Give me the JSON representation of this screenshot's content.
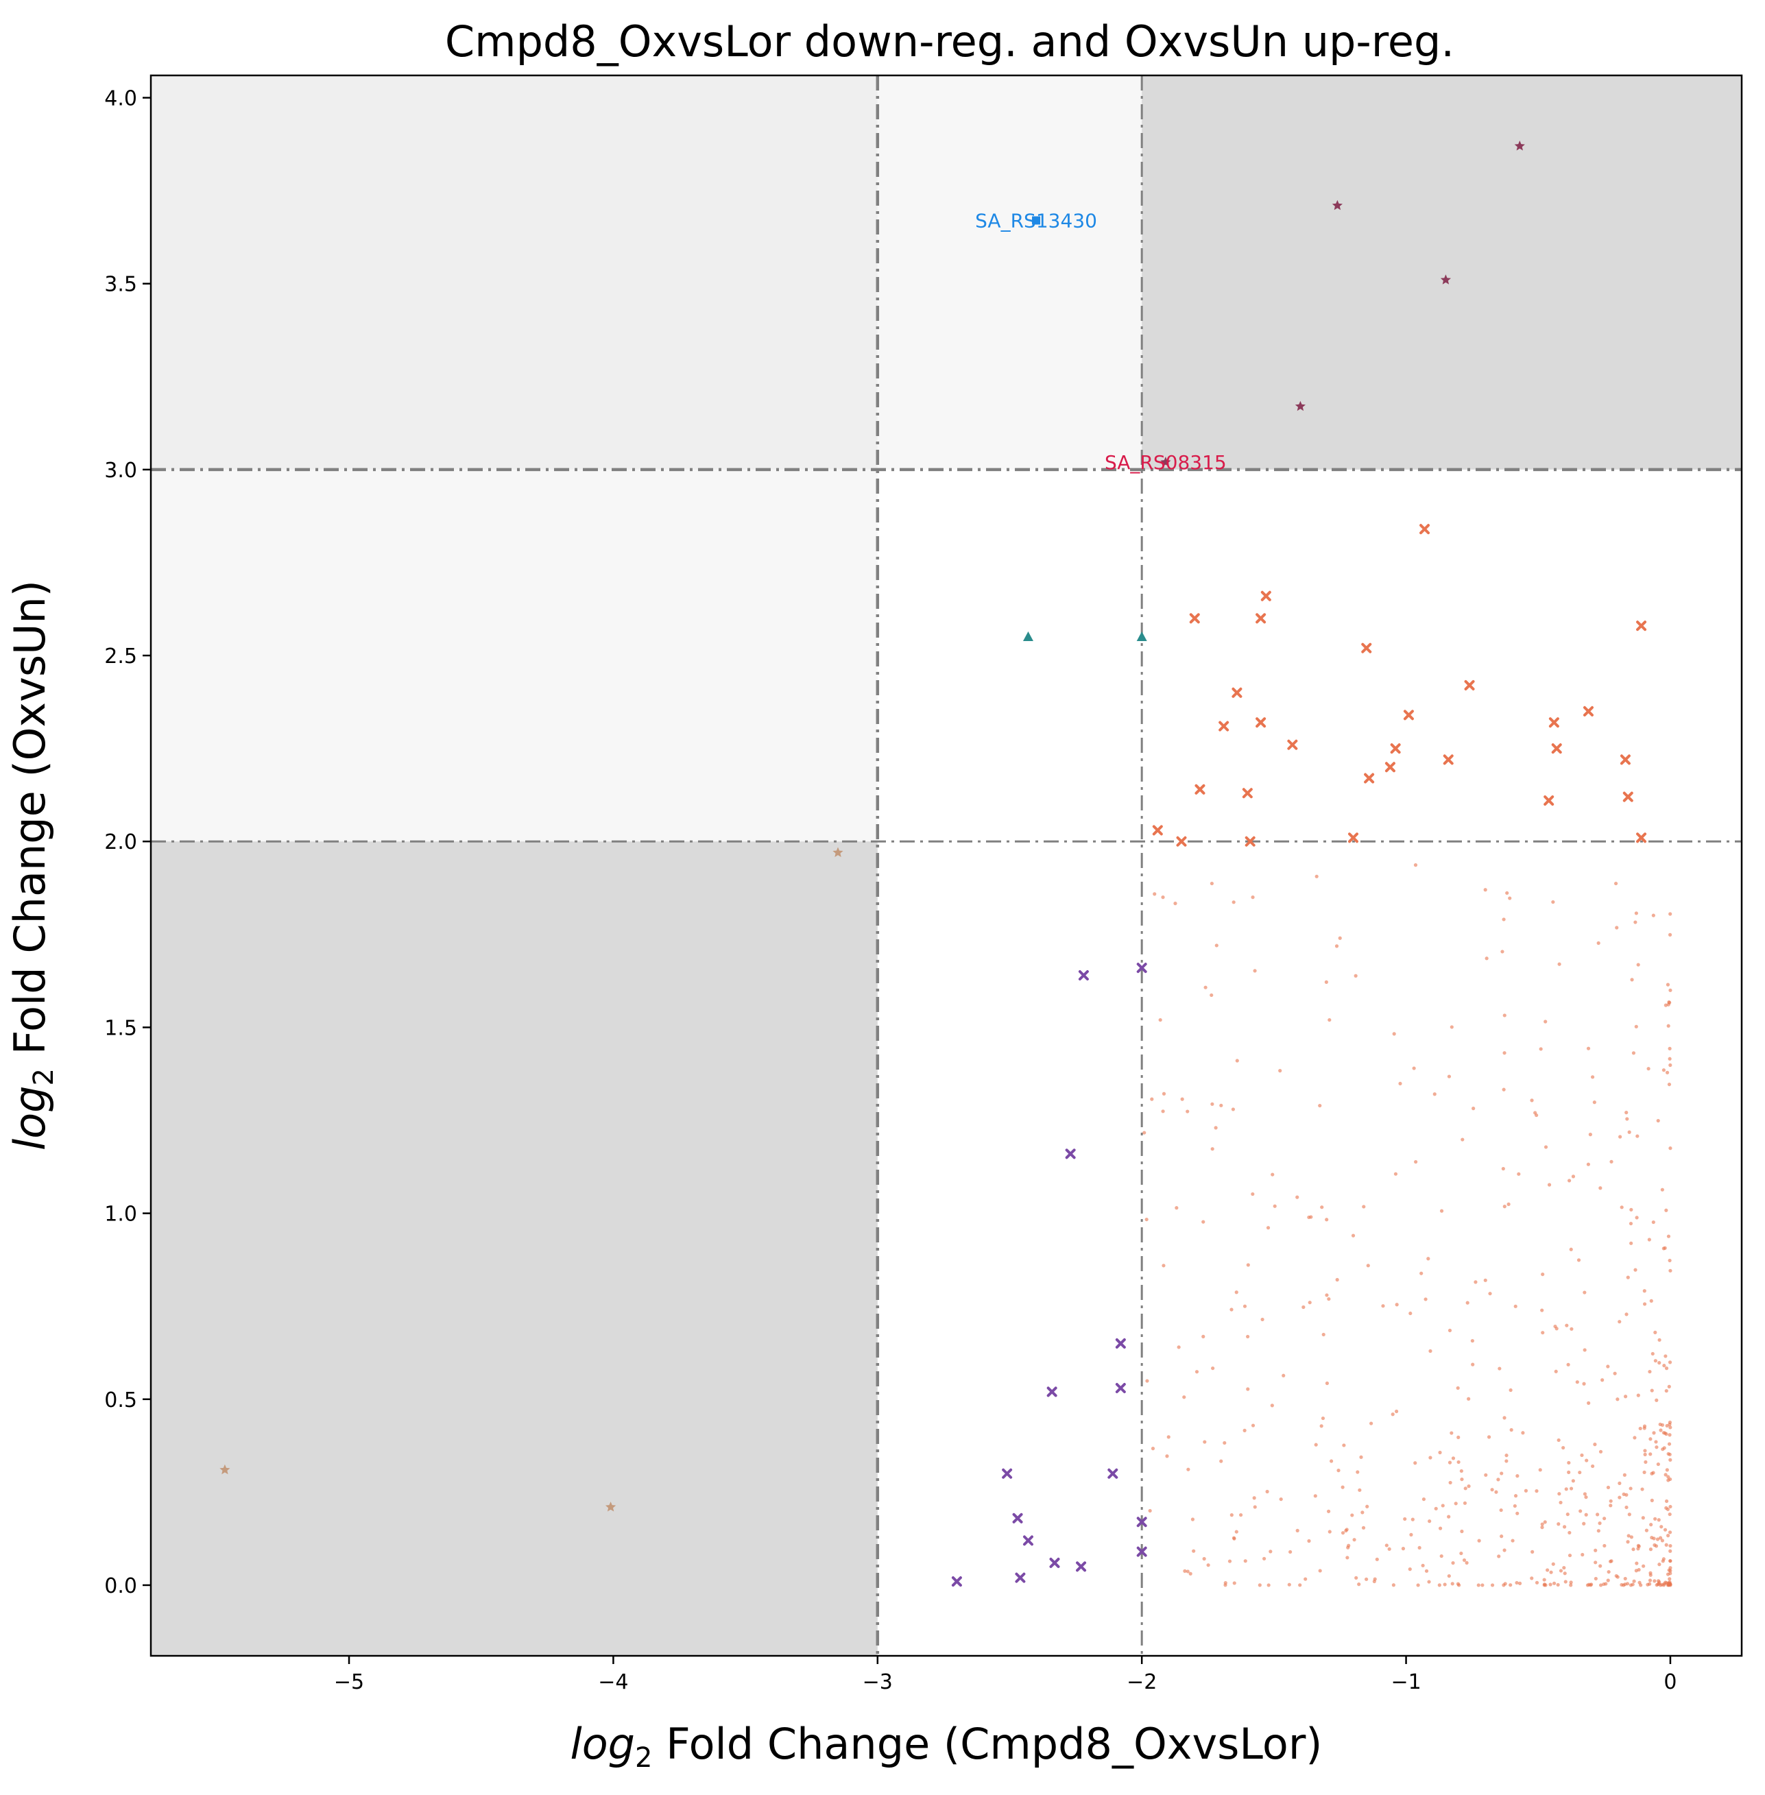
{
  "chart_data": {
    "type": "scatter",
    "title": "Cmpd8_OxvsLor down-reg. and OxvsUn up-reg.",
    "xlabel_math": "log",
    "xlabel_sub": "2",
    "xlabel_rest": " Fold Change (Cmpd8_OxvsLor)",
    "ylabel_math": "log",
    "ylabel_sub": "2",
    "ylabel_rest": " Fold Change (OxvsUn)",
    "xlim": [
      -5.75,
      0.27
    ],
    "ylim": [
      -0.19,
      4.06
    ],
    "x_ticks": [
      -5,
      -4,
      -3,
      -2,
      -1,
      0
    ],
    "x_tick_labels": [
      "−5",
      "−4",
      "−3",
      "−2",
      "−1",
      "0"
    ],
    "y_ticks": [
      0.0,
      0.5,
      1.0,
      1.5,
      2.0,
      2.5,
      3.0,
      3.5,
      4.0
    ],
    "y_tick_labels": [
      "0.0",
      "0.5",
      "1.0",
      "1.5",
      "2.0",
      "2.5",
      "3.0",
      "3.5",
      "4.0"
    ],
    "grid": false,
    "colors": {
      "region_dark": "#dadada",
      "region_light": "#efefef",
      "region_lighter": "#f7f7f7",
      "threshold_line": "#808080"
    },
    "regions": [
      {
        "x": [
          -5.75,
          -3
        ],
        "y": [
          3,
          4.06
        ],
        "shade": "region_light"
      },
      {
        "x": [
          -3,
          -2
        ],
        "y": [
          3,
          4.06
        ],
        "shade": "region_lighter"
      },
      {
        "x": [
          -2,
          0.27
        ],
        "y": [
          3,
          4.06
        ],
        "shade": "region_dark"
      },
      {
        "x": [
          -5.75,
          -3
        ],
        "y": [
          2,
          3
        ],
        "shade": "region_lighter"
      },
      {
        "x": [
          -5.75,
          -3
        ],
        "y": [
          -0.19,
          2
        ],
        "shade": "region_dark"
      }
    ],
    "threshold_lines": [
      {
        "axis": "x",
        "value": -3,
        "weight": "thick"
      },
      {
        "axis": "x",
        "value": -2,
        "weight": "thin"
      },
      {
        "axis": "y",
        "value": 3,
        "weight": "thick"
      },
      {
        "axis": "y",
        "value": 2,
        "weight": "thin"
      }
    ],
    "series": [
      {
        "marker": "star",
        "color": "#8c3a5a",
        "points": [
          [
            -0.57,
            3.87
          ],
          [
            -1.26,
            3.71
          ],
          [
            -0.85,
            3.51
          ],
          [
            -1.4,
            3.17
          ],
          [
            -1.91,
            3.02
          ]
        ]
      },
      {
        "marker": "square",
        "color": "#1e88e5",
        "points": [
          [
            -2.4,
            3.67
          ]
        ]
      },
      {
        "marker": "triangle",
        "color": "#2a8c8c",
        "points": [
          [
            -2.43,
            2.55
          ],
          [
            -2.0,
            2.55
          ]
        ]
      },
      {
        "marker": "star",
        "color": "#c49a7c",
        "points": [
          [
            -3.15,
            1.97
          ],
          [
            -5.47,
            0.31
          ],
          [
            -4.01,
            0.21
          ]
        ]
      },
      {
        "marker": "x",
        "color": "#7b4aa6",
        "points": [
          [
            -2.22,
            1.64
          ],
          [
            -2.0,
            1.66
          ],
          [
            -2.27,
            1.16
          ],
          [
            -2.08,
            0.65
          ],
          [
            -2.34,
            0.52
          ],
          [
            -2.08,
            0.53
          ],
          [
            -2.51,
            0.3
          ],
          [
            -2.11,
            0.3
          ],
          [
            -2.47,
            0.18
          ],
          [
            -2.0,
            0.17
          ],
          [
            -2.43,
            0.12
          ],
          [
            -2.33,
            0.06
          ],
          [
            -2.23,
            0.05
          ],
          [
            -2.0,
            0.09
          ],
          [
            -2.7,
            0.01
          ],
          [
            -2.46,
            0.02
          ]
        ]
      },
      {
        "marker": "x",
        "color": "#e8744f",
        "points": [
          [
            -0.93,
            2.84
          ],
          [
            -1.53,
            2.66
          ],
          [
            -1.8,
            2.6
          ],
          [
            -1.55,
            2.6
          ],
          [
            -0.11,
            2.58
          ],
          [
            -1.15,
            2.52
          ],
          [
            -0.76,
            2.42
          ],
          [
            -1.64,
            2.4
          ],
          [
            -0.31,
            2.35
          ],
          [
            -0.99,
            2.34
          ],
          [
            -1.55,
            2.32
          ],
          [
            -0.44,
            2.32
          ],
          [
            -1.69,
            2.31
          ],
          [
            -1.43,
            2.26
          ],
          [
            -1.04,
            2.25
          ],
          [
            -0.43,
            2.25
          ],
          [
            -0.84,
            2.22
          ],
          [
            -0.17,
            2.22
          ],
          [
            -1.06,
            2.2
          ],
          [
            -1.14,
            2.17
          ],
          [
            -1.78,
            2.14
          ],
          [
            -1.6,
            2.13
          ],
          [
            -0.16,
            2.12
          ],
          [
            -0.46,
            2.11
          ],
          [
            -1.94,
            2.03
          ],
          [
            -1.2,
            2.01
          ],
          [
            -1.59,
            2.0
          ],
          [
            -1.85,
            2.0
          ],
          [
            -0.11,
            2.01
          ]
        ]
      },
      {
        "marker": "dot",
        "color": "#e8744f",
        "cloud_n": 560,
        "sample_points": [
          [
            -1.92,
            1.85
          ],
          [
            -1.58,
            1.85
          ],
          [
            -1.25,
            1.74
          ],
          [
            -0.7,
            1.87
          ],
          [
            -0.42,
            1.67
          ],
          [
            -1.93,
            1.52
          ],
          [
            -1.29,
            1.52
          ],
          [
            -0.97,
            1.39
          ],
          [
            -1.7,
            1.29
          ],
          [
            -1.72,
            1.23
          ],
          [
            -1.36,
            0.99
          ],
          [
            -1.3,
            0.78
          ],
          [
            -1.86,
            0.64
          ],
          [
            -1.61,
            0.75
          ],
          [
            -0.2,
            0.5
          ],
          [
            -0.07,
            0.3
          ],
          [
            -0.03,
            0.12
          ],
          [
            -0.38,
            0.08
          ],
          [
            -1.12,
            0.01
          ],
          [
            -0.8,
            0.0
          ]
        ]
      }
    ],
    "annotations": [
      {
        "text": "SA_RS13430",
        "x": -2.4,
        "y": 3.67,
        "color": "#1e88e5"
      },
      {
        "text": "SA_RS08315",
        "x": -1.91,
        "y": 3.02,
        "color": "#d81b4a"
      }
    ]
  }
}
